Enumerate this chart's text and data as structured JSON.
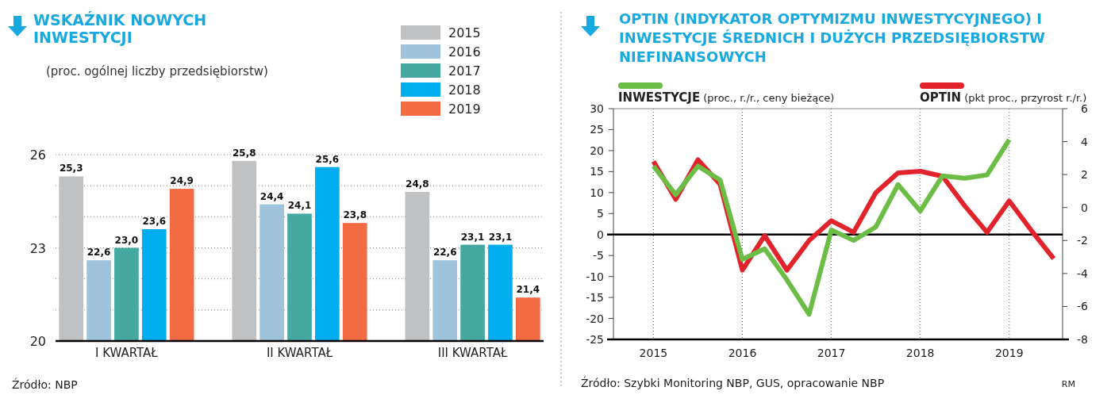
{
  "chart_data": [
    {
      "type": "bar",
      "title": "WSKAŹNIK NOWYCH INWESTYCJI",
      "subtitle": "(proc. ogólnej liczby przedsiębiorstw)",
      "categories": [
        "I KWARTAŁ",
        "II KWARTAŁ",
        "III KWARTAŁ"
      ],
      "series": [
        {
          "name": "2015",
          "color": "#c0c1c3",
          "values": [
            25.3,
            25.8,
            24.8
          ],
          "value_labels": [
            "25,3",
            "25,8",
            "24,8"
          ]
        },
        {
          "name": "2016",
          "color": "#a0c3dc",
          "values": [
            22.6,
            24.4,
            22.6
          ],
          "value_labels": [
            "22,6",
            "24,4",
            "22,6"
          ]
        },
        {
          "name": "2017",
          "color": "#45a9a1",
          "values": [
            23.0,
            24.1,
            23.1
          ],
          "value_labels": [
            "23,0",
            "24,1",
            "23,1"
          ]
        },
        {
          "name": "2018",
          "color": "#00aeef",
          "values": [
            23.6,
            25.6,
            23.1
          ],
          "value_labels": [
            "23,6",
            "25,6",
            "23,1"
          ]
        },
        {
          "name": "2019",
          "color": "#f26b43",
          "values": [
            24.9,
            23.8,
            21.4
          ],
          "value_labels": [
            "24,9",
            "23,8",
            "21,4"
          ]
        }
      ],
      "ylim": [
        20,
        26
      ],
      "yticks": [
        20,
        {
          "value": 21,
          "label": null
        },
        {
          "value": 22,
          "label": null
        },
        23,
        {
          "value": 24,
          "label": null
        },
        {
          "value": 25,
          "label": null
        },
        26
      ],
      "grid": "y",
      "legend": "top right",
      "annotations": [
        "Źródło: NBP"
      ]
    },
    {
      "type": "line",
      "title": "OPTIN (INDYKATOR OPTYMIZMU INWESTYCYJNEGO) I INWESTYCJE ŚREDNICH I DUŻYCH PRZEDSIĘBIORSTW NIEFINANSOWYCH",
      "ylabel": "(proc., r./r., ceny bieżące)",
      "y2label": "(pkt proc., przyrost r./r.)",
      "x": [
        2015,
        2015.25,
        2015.5,
        2015.75,
        2016,
        2016.25,
        2016.5,
        2016.75,
        2017,
        2017.25,
        2017.5,
        2017.75,
        2018,
        2018.25,
        2018.5,
        2018.75,
        2019,
        2019.25,
        2019.5
      ],
      "series": [
        {
          "name": "OPTIN",
          "color": "#e3232c",
          "axis": "y2",
          "values": [
            2.8,
            0.5,
            2.9,
            1.4,
            -3.8,
            -1.7,
            -3.8,
            -2.0,
            -0.8,
            -1.5,
            0.9,
            2.1,
            2.2,
            1.9,
            0.1,
            -1.5,
            0.4,
            -1.4,
            -3.1
          ]
        },
        {
          "name": "INWESTYCJE",
          "color": "#6cbd45",
          "values": [
            16.3,
            9.5,
            16.3,
            13.0,
            -5.9,
            -3.4,
            -10.8,
            -19.0,
            1.1,
            -1.4,
            1.8,
            11.9,
            5.6,
            14.0,
            13.4,
            14.2,
            22.6,
            null,
            null
          ]
        }
      ],
      "xlim": [
        2014.55,
        2019.6
      ],
      "xticks": [
        2015,
        2016,
        2017,
        2018,
        2019
      ],
      "ylim": [
        -25,
        30
      ],
      "yticks": [
        -25,
        -20,
        -15,
        -10,
        -5,
        0,
        5,
        10,
        15,
        20,
        25,
        30
      ],
      "y2lim": [
        -8,
        6
      ],
      "y2ticks": [
        -8,
        -6,
        -4,
        -2,
        0,
        2,
        4,
        6
      ],
      "ref_lines": [
        {
          "axis": "y",
          "value": 0,
          "color": "#000000"
        }
      ],
      "grid": "x",
      "legend": "top",
      "annotations": [
        "Źródło: Szybki Monitoring NBP, GUS, opracowanie NBP",
        "RM"
      ]
    }
  ]
}
